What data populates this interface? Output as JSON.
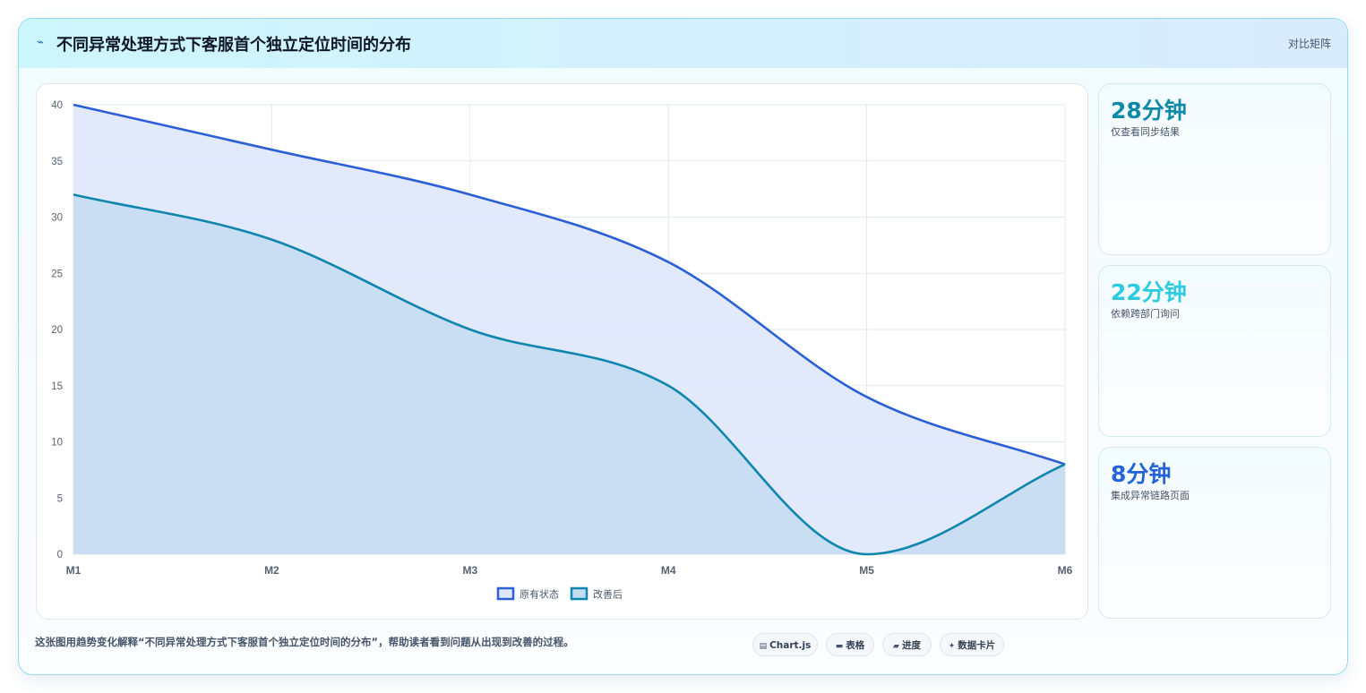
{
  "header": {
    "title": "不同异常处理方式下客服首个独立定位时间的分布",
    "right_label": "对比矩阵",
    "icon": "lightning-icon"
  },
  "kpis": [
    {
      "value": "28分钟",
      "label": "仅查看同步结果",
      "color": "#0e8aa7"
    },
    {
      "value": "22分钟",
      "label": "依赖跨部门询问",
      "color": "#2ccbe0"
    },
    {
      "value": "8分钟",
      "label": "集成异常链路页面",
      "color": "#2563d8"
    }
  ],
  "caption": "这张图用趋势变化解释“不同异常处理方式下客服首个独立定位时间的分布”，帮助读者看到问题从出现到改善的过程。",
  "chips": [
    {
      "icon": "chart-icon",
      "label": "Chart.js"
    },
    {
      "icon": "table-icon",
      "label": "表格"
    },
    {
      "icon": "progress-icon",
      "label": "进度"
    },
    {
      "icon": "sparkle-icon",
      "label": "数据卡片"
    }
  ],
  "chart_data": {
    "type": "area",
    "categories": [
      "M1",
      "M2",
      "M3",
      "M4",
      "M5",
      "M6"
    ],
    "series": [
      {
        "name": "原有状态",
        "values": [
          40,
          36,
          32,
          26,
          14,
          8
        ],
        "color": "#2b5fd6",
        "fill": "#dfe8fb"
      },
      {
        "name": "改善后",
        "values": [
          32,
          28,
          20,
          15,
          0,
          8
        ],
        "color": "#0e86ad",
        "fill": "#c4dcf1"
      }
    ],
    "yticks": [
      0,
      5,
      10,
      15,
      20,
      25,
      30,
      35,
      40
    ],
    "ylim": [
      0,
      40
    ],
    "grid": true,
    "legend": "bottom-center",
    "xlabel": "",
    "ylabel": ""
  }
}
